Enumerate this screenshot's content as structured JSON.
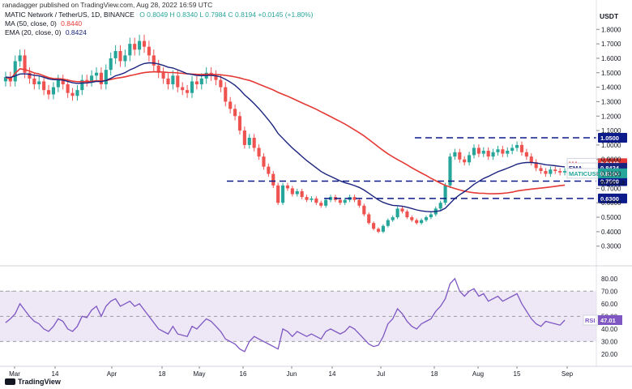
{
  "publisher_line": "ranadagger published on TradingView.com, Aug 28, 2022 16:59 UTC",
  "header": {
    "symbol": "MATIC Network / TetherUS, 1D, BINANCE",
    "ohlc": "O 0.8049  H 0.8340  L 0.7984  C 0.8194  +0.0145 (+1.80%)",
    "ma_label": "MA (50, close, 0)",
    "ma_value": "0.8440",
    "ema_label": "EMA (20, close, 0)",
    "ema_value": "0.8424",
    "rsi_label": "RSI (14, close)",
    "rsi_value": "47.01"
  },
  "currency": "USDT",
  "footer_logo": "TradingView",
  "colors": {
    "up": "#26a69a",
    "down": "#ef5350",
    "ma": "#e53935",
    "ema": "#1a237e",
    "rsi": "#7e57c2",
    "rsi_band": "#ede7f6",
    "level": "#0d1a8a",
    "ticker_tag": "#26a69a"
  },
  "chart_data": [
    {
      "type": "candlestick",
      "title": "MATIC Network / TetherUS, 1D, BINANCE",
      "ylabel": "USDT",
      "ylim": [
        0.22,
        1.88
      ],
      "y_ticks": [
        "1.8000",
        "1.7000",
        "1.6000",
        "1.5000",
        "1.4000",
        "1.3000",
        "1.2000",
        "1.1000",
        "1.0000",
        "0.9000",
        "0.8000",
        "0.7000",
        "0.6000",
        "0.5000",
        "0.4000",
        "0.3000"
      ],
      "x_ticks": [
        "Mar",
        "14",
        "Apr",
        "18",
        "May",
        "16",
        "Jun",
        "14",
        "Jul",
        "18",
        "Aug",
        "15",
        "Sep"
      ],
      "closes": [
        1.47,
        1.44,
        1.58,
        1.62,
        1.5,
        1.46,
        1.42,
        1.44,
        1.38,
        1.35,
        1.4,
        1.45,
        1.42,
        1.36,
        1.34,
        1.38,
        1.45,
        1.44,
        1.48,
        1.5,
        1.42,
        1.52,
        1.6,
        1.65,
        1.58,
        1.62,
        1.7,
        1.66,
        1.72,
        1.68,
        1.62,
        1.55,
        1.5,
        1.46,
        1.42,
        1.48,
        1.4,
        1.38,
        1.36,
        1.44,
        1.42,
        1.46,
        1.5,
        1.48,
        1.45,
        1.4,
        1.3,
        1.25,
        1.2,
        1.1,
        1.0,
        1.05,
        0.98,
        0.92,
        0.85,
        0.8,
        0.72,
        0.6,
        0.72,
        0.7,
        0.66,
        0.68,
        0.64,
        0.62,
        0.63,
        0.6,
        0.58,
        0.62,
        0.64,
        0.62,
        0.6,
        0.62,
        0.64,
        0.62,
        0.58,
        0.52,
        0.46,
        0.42,
        0.4,
        0.44,
        0.48,
        0.5,
        0.56,
        0.54,
        0.5,
        0.48,
        0.46,
        0.48,
        0.5,
        0.52,
        0.56,
        0.6,
        0.72,
        0.92,
        0.95,
        0.9,
        0.88,
        0.93,
        0.98,
        0.94,
        0.96,
        0.92,
        0.95,
        0.97,
        0.94,
        0.96,
        0.98,
        1.0,
        0.95,
        0.92,
        0.88,
        0.84,
        0.82,
        0.8,
        0.83,
        0.82,
        0.81,
        0.8194
      ],
      "ma_50_last": 0.844,
      "ema_20_last": 0.8424,
      "levels": [
        1.05,
        0.75,
        0.63
      ],
      "level_labels": [
        "1.0500",
        "0.7500",
        "0.6300"
      ],
      "price_tags": [
        {
          "label": "MA",
          "value": "0.8440"
        },
        {
          "label": "EMA",
          "value": "0.8424"
        },
        {
          "label": "MATICUSDT",
          "value": "0.8194",
          "countdown": "07:00:13"
        }
      ]
    },
    {
      "type": "line",
      "title": "RSI (14, close)",
      "ylim": [
        18,
        85
      ],
      "y_ticks": [
        "80.00",
        "70.00",
        "60.00",
        "50.00",
        "40.00",
        "30.00",
        "20.00"
      ],
      "band": [
        30,
        70
      ],
      "last_value": 47.01,
      "values": [
        45,
        48,
        52,
        60,
        55,
        50,
        46,
        44,
        40,
        38,
        42,
        48,
        46,
        40,
        38,
        42,
        50,
        49,
        55,
        58,
        50,
        58,
        62,
        64,
        58,
        60,
        62,
        58,
        60,
        55,
        50,
        45,
        40,
        38,
        36,
        42,
        36,
        35,
        34,
        42,
        40,
        44,
        48,
        46,
        42,
        38,
        32,
        30,
        28,
        24,
        22,
        30,
        34,
        32,
        30,
        28,
        26,
        24,
        40,
        38,
        34,
        38,
        36,
        34,
        36,
        34,
        32,
        38,
        40,
        38,
        36,
        38,
        42,
        40,
        36,
        32,
        28,
        26,
        27,
        34,
        44,
        48,
        56,
        52,
        46,
        42,
        40,
        44,
        46,
        48,
        54,
        58,
        64,
        76,
        80,
        70,
        66,
        70,
        72,
        66,
        68,
        62,
        64,
        66,
        62,
        64,
        66,
        68,
        60,
        54,
        48,
        44,
        42,
        46,
        45,
        44,
        43,
        47.01
      ]
    }
  ]
}
